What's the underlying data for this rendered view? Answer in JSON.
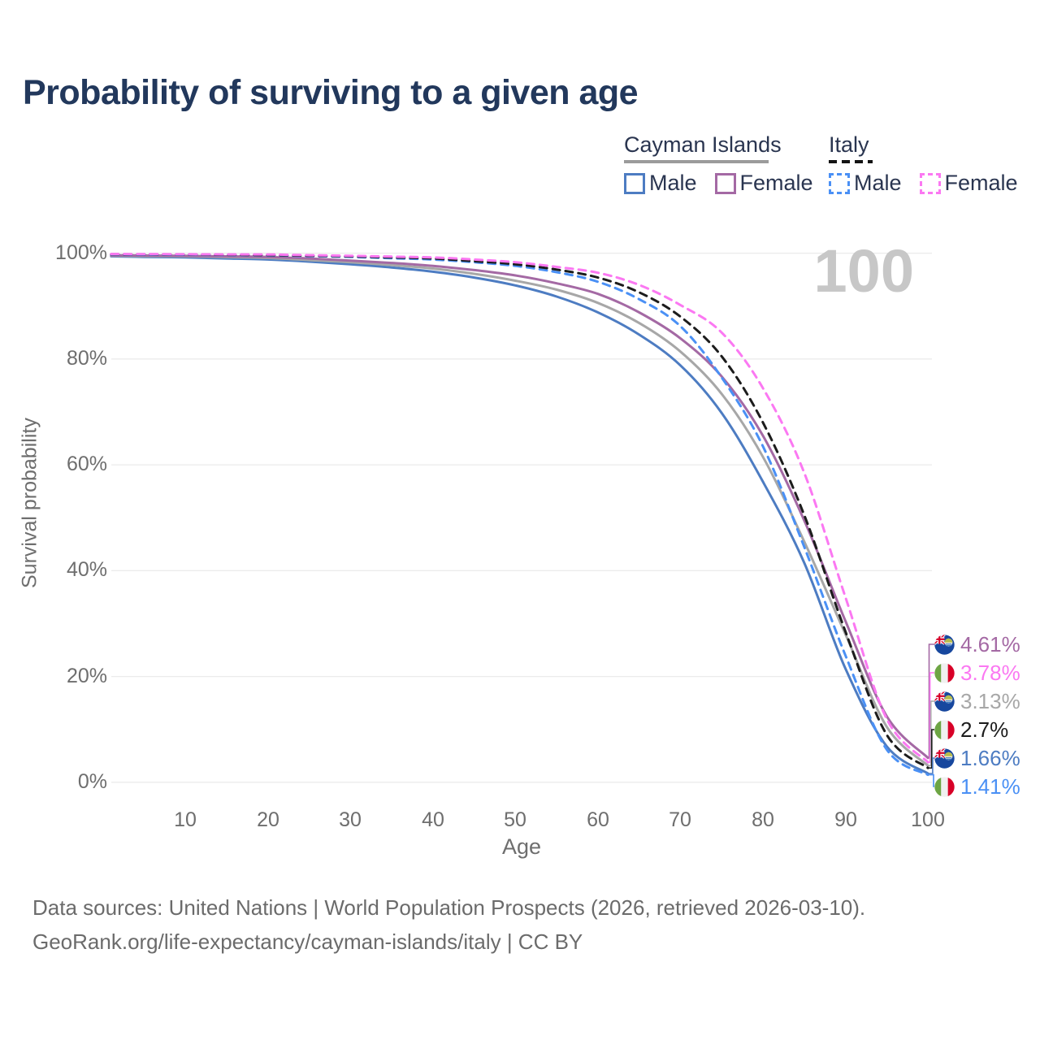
{
  "title": "Probability of surviving to a given age",
  "colors": {
    "title_text": "#22385c",
    "legend_text": "#2a3550",
    "axis_text": "#6e6e6e",
    "grid": "#ebebeb",
    "watermark": "#c7c7c7",
    "footer_text": "#6b6b6b",
    "cayman_group_underline": "#9b9b9b",
    "italy_group_underline": "#141414"
  },
  "legend": {
    "groups": [
      {
        "id": "cayman",
        "label": "Cayman Islands",
        "underline_style": "solid",
        "items": [
          {
            "id": "cayman_male",
            "label": "Male",
            "swatch": "solid"
          },
          {
            "id": "cayman_female",
            "label": "Female",
            "swatch": "solid"
          }
        ]
      },
      {
        "id": "italy",
        "label": "Italy",
        "underline_style": "dashed",
        "items": [
          {
            "id": "italy_male",
            "label": "Male",
            "swatch": "dashed"
          },
          {
            "id": "italy_female",
            "label": "Female",
            "swatch": "dashed"
          }
        ]
      }
    ]
  },
  "chart_data": {
    "type": "line",
    "title": "Probability of surviving to a given age",
    "xlabel": "Age",
    "ylabel": "Survival probability",
    "xlim": [
      1,
      100
    ],
    "ylim": [
      0,
      100
    ],
    "grid": "horizontal",
    "annotation": "100",
    "x_ticks": [
      10,
      20,
      30,
      40,
      50,
      60,
      70,
      80,
      90,
      100
    ],
    "y_ticks": [
      {
        "value": 100,
        "label": "100%"
      },
      {
        "value": 80,
        "label": "80%"
      },
      {
        "value": 60,
        "label": "60%"
      },
      {
        "value": 40,
        "label": "40%"
      },
      {
        "value": 20,
        "label": "20%"
      },
      {
        "value": 0,
        "label": "0%"
      }
    ],
    "x": [
      1,
      5,
      10,
      15,
      20,
      25,
      30,
      35,
      40,
      45,
      50,
      55,
      60,
      65,
      70,
      75,
      80,
      85,
      90,
      95,
      100
    ],
    "series": [
      {
        "id": "cayman_male",
        "name": "Cayman Islands Male",
        "country": "Cayman Islands",
        "sex": "Male",
        "color": "#4d7cc2",
        "dash": "solid",
        "values": [
          99.4,
          99.3,
          99.2,
          99.0,
          98.8,
          98.4,
          97.9,
          97.3,
          96.5,
          95.4,
          93.9,
          91.8,
          88.8,
          84.6,
          78.8,
          69.8,
          56.8,
          41.5,
          21.5,
          6.8,
          1.66
        ]
      },
      {
        "id": "cayman_total",
        "name": "Cayman Islands",
        "country": "Cayman Islands",
        "sex": "Both",
        "color": "#a7a7a7",
        "dash": "solid",
        "values": [
          99.5,
          99.45,
          99.4,
          99.25,
          99.1,
          98.7,
          98.3,
          97.75,
          97.1,
          96.1,
          94.8,
          93.1,
          90.6,
          86.8,
          81.4,
          73.4,
          61.5,
          45.5,
          28.0,
          10.5,
          3.13
        ]
      },
      {
        "id": "cayman_female",
        "name": "Cayman Islands Female",
        "country": "Cayman Islands",
        "sex": "Female",
        "color": "#a469a4",
        "dash": "solid",
        "values": [
          99.6,
          99.55,
          99.5,
          99.4,
          99.3,
          99.0,
          98.6,
          98.15,
          97.6,
          96.8,
          95.8,
          94.3,
          92.3,
          88.8,
          83.9,
          76.7,
          65.5,
          49.5,
          30.5,
          12.5,
          4.61
        ]
      },
      {
        "id": "italy_male",
        "name": "Italy Male",
        "country": "Italy",
        "sex": "Male",
        "color": "#4a90f5",
        "dash": "dashed",
        "values": [
          99.75,
          99.72,
          99.7,
          99.65,
          99.6,
          99.45,
          99.3,
          99.05,
          98.8,
          98.3,
          97.6,
          96.4,
          94.6,
          91.3,
          86.2,
          76.5,
          63.5,
          44.5,
          24.0,
          6.2,
          1.41
        ]
      },
      {
        "id": "italy_total",
        "name": "Italy",
        "country": "Italy",
        "sex": "Both",
        "color": "#1c1c1c",
        "dash": "dashed",
        "values": [
          99.8,
          99.78,
          99.75,
          99.7,
          99.65,
          99.52,
          99.4,
          99.2,
          99.0,
          98.5,
          97.9,
          96.9,
          95.4,
          92.6,
          88.0,
          80.5,
          68.0,
          50.5,
          28.5,
          9.0,
          2.7
        ]
      },
      {
        "id": "italy_female",
        "name": "Italy Female",
        "country": "Italy",
        "sex": "Female",
        "color": "#fb78f2",
        "dash": "dashed",
        "values": [
          99.85,
          99.82,
          99.8,
          99.77,
          99.75,
          99.62,
          99.5,
          99.35,
          99.2,
          98.8,
          98.3,
          97.4,
          96.3,
          94.0,
          90.2,
          85.0,
          74.5,
          58.5,
          35.0,
          12.0,
          3.78
        ]
      }
    ],
    "end_labels": [
      {
        "series": "cayman_female",
        "flag": "cayman",
        "text": "4.61%"
      },
      {
        "series": "italy_female",
        "flag": "italy",
        "text": "3.78%"
      },
      {
        "series": "cayman_total",
        "flag": "cayman",
        "text": "3.13%"
      },
      {
        "series": "italy_total",
        "flag": "italy",
        "text": "2.7%"
      },
      {
        "series": "cayman_male",
        "flag": "cayman",
        "text": "1.66%"
      },
      {
        "series": "italy_male",
        "flag": "italy",
        "text": "1.41%"
      }
    ]
  },
  "axes": {
    "y_title": "Survival probability",
    "x_title": "Age"
  },
  "watermark": "100",
  "footer": {
    "line1": "Data sources: United Nations | World Population Prospects (2026, retrieved 2026-03-10).",
    "line2": "GeoRank.org/life-expectancy/cayman-islands/italy | CC BY"
  }
}
